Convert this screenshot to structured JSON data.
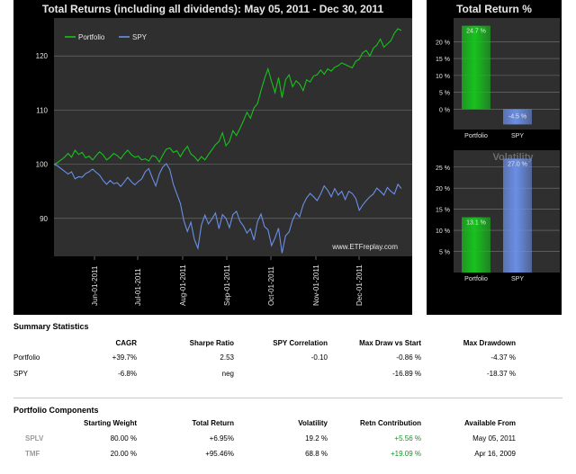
{
  "chart_data": [
    {
      "type": "line",
      "title": "Total Returns (including all dividends): May 05, 2011 - Dec 30, 2011",
      "x_ticks": [
        "Jun-01-2011",
        "Jul-01-2011",
        "Aug-01-2011",
        "Sep-01-2011",
        "Oct-01-2011",
        "Nov-01-2011",
        "Dec-01-2011"
      ],
      "y_ticks": [
        90,
        100,
        110,
        120
      ],
      "ylim": [
        83,
        127
      ],
      "watermark": "www.ETFreplay.com",
      "legend_position": "top-left",
      "series": [
        {
          "name": "Portfolio",
          "color": "#18c21e",
          "values": [
            100,
            100.3,
            100.8,
            101.3,
            102.0,
            101.3,
            102.6,
            101.8,
            102.2,
            101.2,
            101.5,
            100.8,
            101.6,
            102.3,
            101.7,
            100.8,
            101.3,
            102.0,
            101.6,
            101.0,
            101.9,
            102.6,
            101.8,
            101.3,
            101.5,
            100.8,
            101.0,
            100.6,
            101.6,
            101.4,
            100.4,
            101.7,
            102.8,
            103.0,
            102.2,
            102.5,
            101.4,
            102.5,
            103.3,
            101.9,
            101.4,
            100.6,
            101.4,
            100.8,
            101.8,
            102.7,
            103.6,
            104.2,
            105.8,
            103.4,
            104.2,
            106.2,
            105.3,
            106.6,
            108.0,
            109.6,
            108.5,
            110.4,
            111.2,
            113.6,
            115.8,
            117.6,
            115.3,
            113.2,
            116.0,
            112.3,
            115.6,
            116.5,
            114.3,
            115.4,
            114.8,
            113.6,
            115.6,
            115.2,
            116.3,
            116.5,
            117.4,
            116.6,
            117.6,
            117.2,
            117.9,
            118.2,
            118.7,
            118.4,
            118.1,
            117.8,
            119.0,
            119.4,
            120.6,
            121.0,
            120.0,
            121.4,
            122.0,
            123.1,
            121.6,
            122.2,
            122.8,
            124.2,
            125.0,
            124.7
          ]
        },
        {
          "name": "SPY",
          "color": "#6b8fe6",
          "values": [
            100,
            99.7,
            99.2,
            98.7,
            98.2,
            98.6,
            97.3,
            97.7,
            97.6,
            98.3,
            98.6,
            99.1,
            98.5,
            98.0,
            97.0,
            96.3,
            97.0,
            96.4,
            96.6,
            95.9,
            96.7,
            97.6,
            96.8,
            96.2,
            96.8,
            97.3,
            98.6,
            99.2,
            97.5,
            96.0,
            98.2,
            99.5,
            100.1,
            99.0,
            96.3,
            94.5,
            92.8,
            89.6,
            87.6,
            89.3,
            86.1,
            84.5,
            88.8,
            90.6,
            89.0,
            89.9,
            91.0,
            88.1,
            90.7,
            90.0,
            88.3,
            90.7,
            91.3,
            89.5,
            88.6,
            87.3,
            88.1,
            86.0,
            89.4,
            90.8,
            88.5,
            87.9,
            85.0,
            86.4,
            88.2,
            83.6,
            86.8,
            87.5,
            89.7,
            91.0,
            90.3,
            92.5,
            93.8,
            94.6,
            94.0,
            93.3,
            94.5,
            96.0,
            95.2,
            94.0,
            95.5,
            94.3,
            95.0,
            93.5,
            95.0,
            94.6,
            93.7,
            91.5,
            92.5,
            93.3,
            94.0,
            94.5,
            95.6,
            95.0,
            94.3,
            95.7,
            95.0,
            94.5,
            96.3,
            95.5
          ]
        }
      ]
    },
    {
      "type": "bar",
      "title": "Total Return %",
      "categories": [
        "Portfolio",
        "SPY"
      ],
      "values": [
        24.7,
        -4.5
      ],
      "value_labels": [
        "24.7 %",
        "-4.5 %"
      ],
      "y_ticks": [
        "20 %",
        "15 %",
        "10 %",
        "5 %",
        "0 %"
      ],
      "ylim": [
        -6,
        27
      ]
    },
    {
      "type": "bar",
      "title": "Volatility",
      "categories": [
        "Portfolio",
        "SPY"
      ],
      "values": [
        13.1,
        27.0
      ],
      "value_labels": [
        "13.1 %",
        "27.0 %"
      ],
      "y_ticks": [
        "25 %",
        "20 %",
        "15 %",
        "10 %",
        "5 %"
      ],
      "ylim": [
        0,
        29
      ]
    }
  ],
  "summary": {
    "title": "Summary Statistics",
    "headers": [
      "CAGR",
      "Sharpe Ratio",
      "SPY Correlation",
      "Max Draw vs Start",
      "Max Drawdown"
    ],
    "rows": [
      {
        "label": "Portfolio",
        "cells": [
          "+39.7%",
          "2.53",
          "-0.10",
          "-0.86 %",
          "-4.37 %"
        ]
      },
      {
        "label": "SPY",
        "cells": [
          "-6.8%",
          "neg",
          "",
          "-16.89 %",
          "-18.37 %"
        ]
      }
    ]
  },
  "components": {
    "title": "Portfolio Components",
    "headers": [
      "Starting Weight",
      "Total Return",
      "Volatility",
      "Retn Contribution",
      "Available From"
    ],
    "rows": [
      {
        "ticker": "SPLV",
        "cells": [
          "80.00 %",
          "+6.95%",
          "19.2 %",
          "+5.56 %",
          "May 05, 2011"
        ]
      },
      {
        "ticker": "TMF",
        "cells": [
          "20.00 %",
          "+95.46%",
          "68.8 %",
          "+19.09 %",
          "Apr 16, 2009"
        ]
      }
    ]
  },
  "colors": {
    "panel_bg": "#000000",
    "plot_bg": "#2f2f2f",
    "portfolio_green": "#18c21e",
    "spy_blue": "#6b8fe6",
    "positive_text": "#1a8f2a"
  }
}
